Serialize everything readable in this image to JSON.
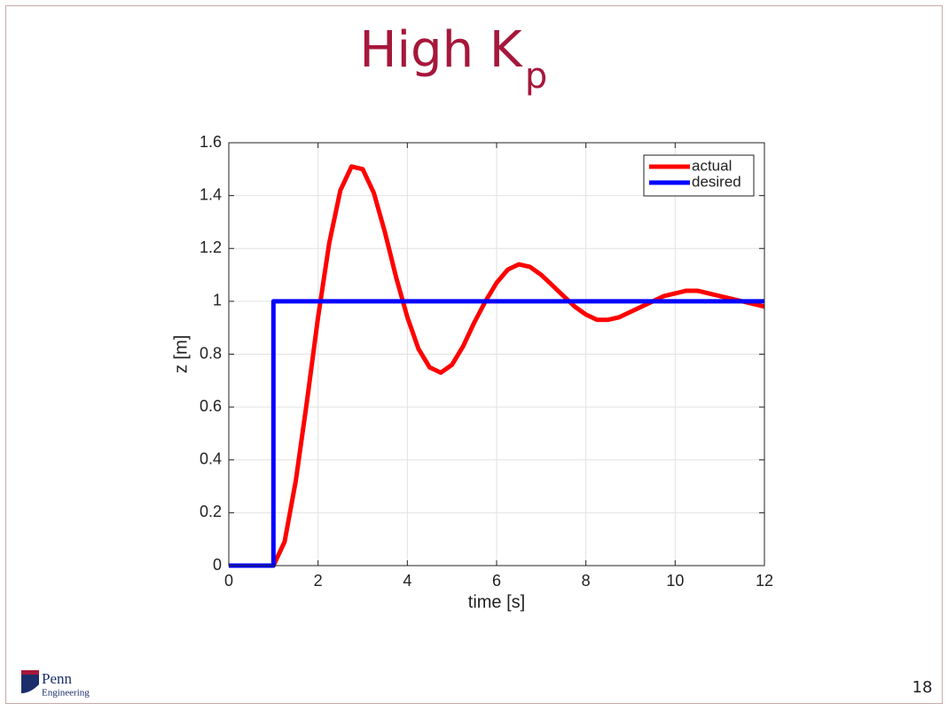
{
  "slide": {
    "title": "High K",
    "title_subscript": "p",
    "page_number": "18",
    "logo": {
      "line1": "Penn",
      "line2": "Engineering"
    }
  },
  "chart_data": {
    "type": "line",
    "xlabel": "time [s]",
    "ylabel": "z [m]",
    "xlim": [
      0,
      12
    ],
    "xticks": [
      0,
      2,
      4,
      6,
      8,
      10,
      12
    ],
    "ylim": [
      0,
      1.6
    ],
    "yticks": [
      0,
      0.2,
      0.4,
      0.6,
      0.8,
      1,
      1.2,
      1.4,
      1.6
    ],
    "grid": true,
    "legend": "upper right",
    "series": [
      {
        "name": "actual",
        "color": "#ff0000",
        "x": [
          0,
          1,
          1.25,
          1.5,
          1.75,
          2,
          2.25,
          2.5,
          2.75,
          3,
          3.25,
          3.5,
          3.75,
          4,
          4.25,
          4.5,
          4.75,
          5,
          5.25,
          5.5,
          5.75,
          6,
          6.25,
          6.5,
          6.75,
          7,
          7.25,
          7.5,
          7.75,
          8,
          8.25,
          8.5,
          8.75,
          9,
          9.25,
          9.5,
          9.75,
          10,
          10.25,
          10.5,
          10.75,
          11,
          11.25,
          11.5,
          11.75,
          12
        ],
        "values": [
          0,
          0,
          0.09,
          0.32,
          0.62,
          0.94,
          1.22,
          1.42,
          1.51,
          1.5,
          1.41,
          1.26,
          1.09,
          0.94,
          0.82,
          0.75,
          0.73,
          0.76,
          0.83,
          0.92,
          1.0,
          1.07,
          1.12,
          1.14,
          1.13,
          1.1,
          1.06,
          1.02,
          0.98,
          0.95,
          0.93,
          0.93,
          0.94,
          0.96,
          0.98,
          1.0,
          1.02,
          1.03,
          1.04,
          1.04,
          1.03,
          1.02,
          1.01,
          1.0,
          0.99,
          0.98
        ]
      },
      {
        "name": "desired",
        "color": "#0000ff",
        "x": [
          0,
          1,
          1,
          12
        ],
        "values": [
          0,
          0,
          1,
          1
        ]
      }
    ]
  }
}
